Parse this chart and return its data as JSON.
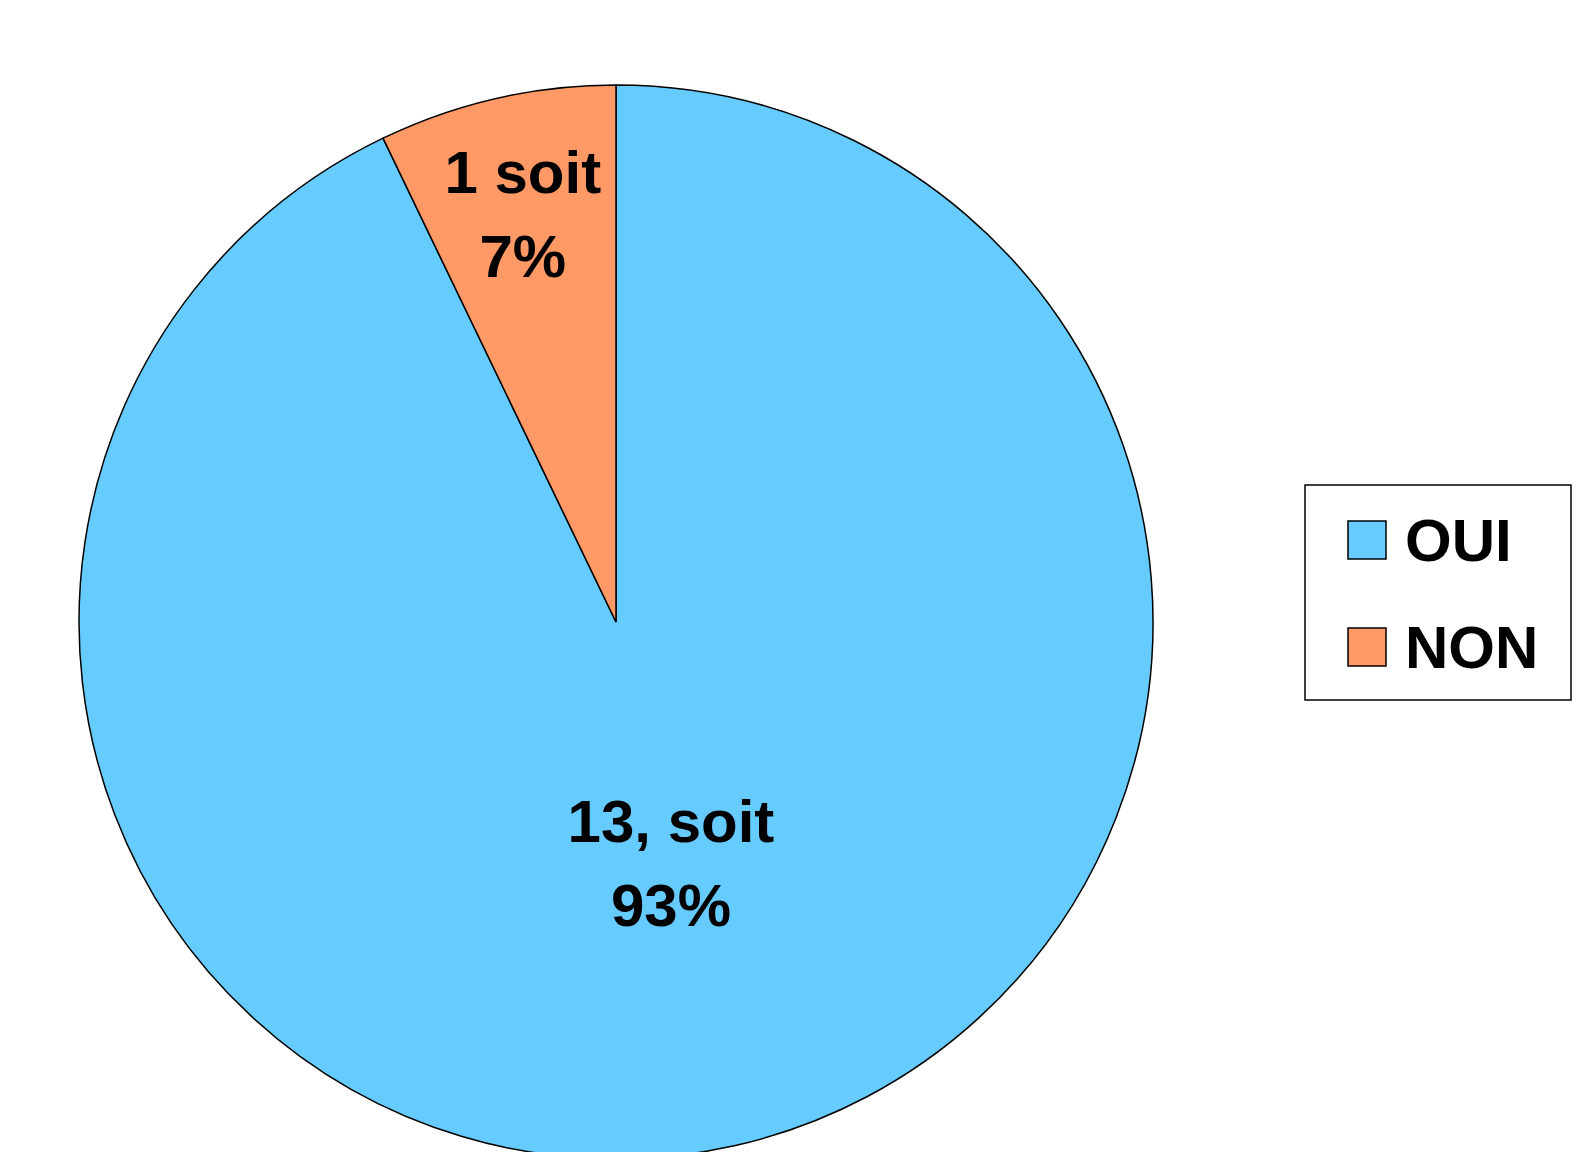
{
  "chart_data": {
    "type": "pie",
    "categories": [
      "OUI",
      "NON"
    ],
    "values": [
      13,
      1
    ],
    "colors": [
      "#66ccff",
      "#ff9966"
    ],
    "value_labels": [
      "13, soit\n93%",
      "1 soit\n7%"
    ],
    "legend": "right"
  }
}
